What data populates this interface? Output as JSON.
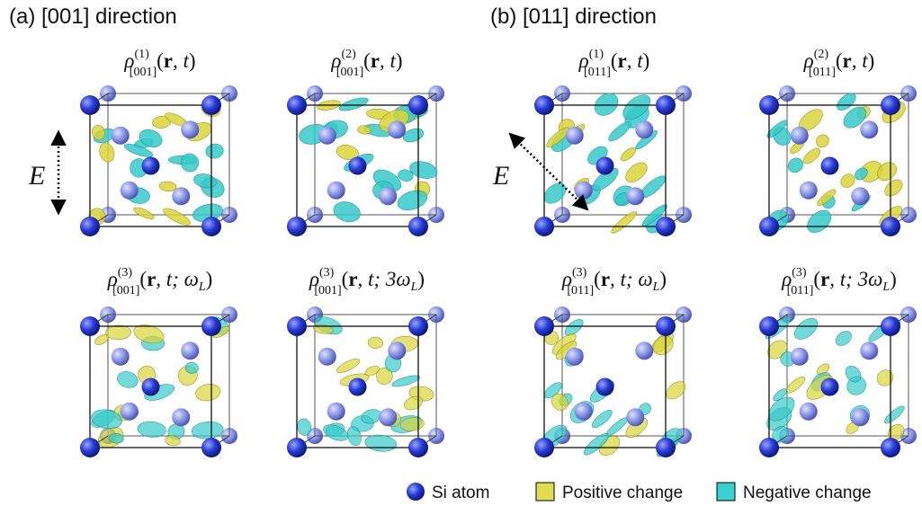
{
  "sections": [
    {
      "title": "(a) [001] direction",
      "field_label": "E",
      "panels": [
        {
          "symbol": "ρ",
          "superscript": "(1)",
          "subscript": "[001]",
          "open": "(",
          "vector": "r",
          "rest": ", t",
          "rest_subscript": null,
          "close": ")"
        },
        {
          "symbol": "ρ",
          "superscript": "(2)",
          "subscript": "[001]",
          "open": "(",
          "vector": "r",
          "rest": ", t",
          "rest_subscript": null,
          "close": ")"
        },
        {
          "symbol": "ρ",
          "superscript": "(3)",
          "subscript": "[001]",
          "open": "(",
          "vector": "r",
          "rest": ", t; ω",
          "rest_subscript": "L",
          "close": ")"
        },
        {
          "symbol": "ρ",
          "superscript": "(3)",
          "subscript": "[001]",
          "open": "(",
          "vector": "r",
          "rest": ", t; 3ω",
          "rest_subscript": "L",
          "close": ")"
        }
      ]
    },
    {
      "title": "(b) [011] direction",
      "field_label": "E",
      "panels": [
        {
          "symbol": "ρ",
          "superscript": "(1)",
          "subscript": "[011]",
          "open": "(",
          "vector": "r",
          "rest": ", t",
          "rest_subscript": null,
          "close": ")"
        },
        {
          "symbol": "ρ",
          "superscript": "(2)",
          "subscript": "[011]",
          "open": "(",
          "vector": "r",
          "rest": ", t",
          "rest_subscript": null,
          "close": ")"
        },
        {
          "symbol": "ρ",
          "superscript": "(3)",
          "subscript": "[011]",
          "open": "(",
          "vector": "r",
          "rest": ", t; ω",
          "rest_subscript": "L",
          "close": ")"
        },
        {
          "symbol": "ρ",
          "superscript": "(3)",
          "subscript": "[011]",
          "open": "(",
          "vector": "r",
          "rest": ", t; 3ω",
          "rest_subscript": "L",
          "close": ")"
        }
      ]
    }
  ],
  "legend": [
    {
      "label": "Si atom"
    },
    {
      "label": "Positive change"
    },
    {
      "label": "Negative change"
    }
  ]
}
